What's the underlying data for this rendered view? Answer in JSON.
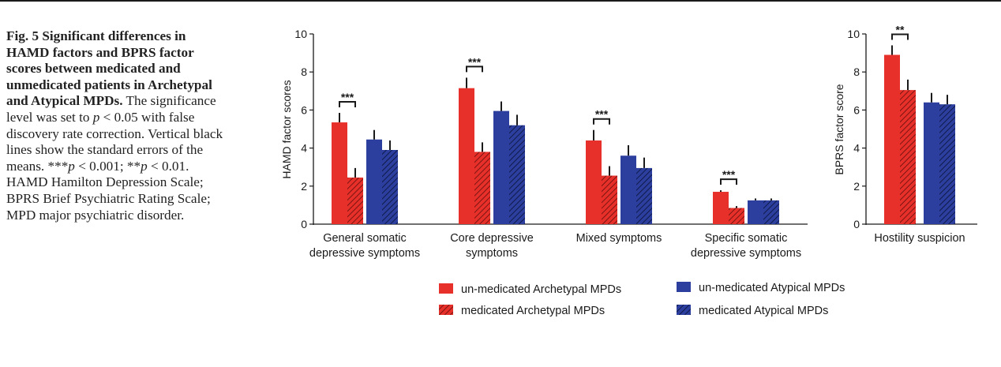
{
  "caption": {
    "title": "Fig. 5 Significant differences in HAMD factors and BPRS factor scores between medicated and unmedicated patients in Archetypal and Atypical MPDs.",
    "text_1": " The significance level was set to ",
    "p_symbol": "p",
    "text_2": " < 0.05 with false discovery rate correction. Vertical black lines show the standard errors of the means. ***",
    "text_3": " < 0.001; **",
    "text_4": " < 0.01. HAMD Hamilton Depression Scale; BPRS Brief Psychiatric Rating Scale; MPD major psychiatric disorder."
  },
  "colors": {
    "archetypal": "#e8302a",
    "atypical": "#2c3f9e",
    "axis": "#1a1a1a"
  },
  "legend": [
    {
      "label": "un-medicated Archetypal MPDs",
      "color": "#e8302a",
      "hatched": false
    },
    {
      "label": "medicated Archetypal MPDs",
      "color": "#e8302a",
      "hatched": true
    },
    {
      "label": "un-medicated  Atypical MPDs",
      "color": "#2c3f9e",
      "hatched": false
    },
    {
      "label": "medicated Atypical MPDs",
      "color": "#2c3f9e",
      "hatched": true
    }
  ],
  "chart_data": [
    {
      "type": "bar",
      "ylabel": "HAMD factor scores",
      "ylim": [
        0,
        10
      ],
      "yticks": [
        0,
        2,
        4,
        6,
        8,
        10
      ],
      "categories": [
        [
          "General somatic",
          "depressive symptoms"
        ],
        [
          "Core depressive",
          "symptoms"
        ],
        [
          "Mixed symptoms"
        ],
        [
          "Specific somatic",
          "depressive symptoms"
        ]
      ],
      "series": [
        {
          "name": "un-medicated Archetypal MPDs",
          "values": [
            5.35,
            7.15,
            4.4,
            1.7
          ],
          "errors": [
            0.5,
            0.55,
            0.55,
            0.08
          ]
        },
        {
          "name": "medicated Archetypal MPDs",
          "values": [
            2.45,
            3.8,
            2.55,
            0.85
          ],
          "errors": [
            0.5,
            0.5,
            0.5,
            0.1
          ]
        },
        {
          "name": "un-medicated  Atypical MPDs",
          "values": [
            4.45,
            5.95,
            3.6,
            1.25
          ],
          "errors": [
            0.5,
            0.5,
            0.55,
            0.1
          ]
        },
        {
          "name": "medicated Atypical MPDs",
          "values": [
            3.9,
            5.2,
            2.95,
            1.25
          ],
          "errors": [
            0.5,
            0.55,
            0.55,
            0.1
          ]
        }
      ],
      "significance": [
        {
          "category": 0,
          "label": "***"
        },
        {
          "category": 1,
          "label": "***"
        },
        {
          "category": 2,
          "label": "***"
        },
        {
          "category": 3,
          "label": "***"
        }
      ]
    },
    {
      "type": "bar",
      "ylabel": "BPRS factor score",
      "ylim": [
        0,
        10
      ],
      "yticks": [
        0,
        2,
        4,
        6,
        8,
        10
      ],
      "categories": [
        [
          "Hostility suspicion"
        ]
      ],
      "series": [
        {
          "name": "un-medicated Archetypal MPDs",
          "values": [
            8.9
          ],
          "errors": [
            0.5
          ]
        },
        {
          "name": "medicated Archetypal MPDs",
          "values": [
            7.05
          ],
          "errors": [
            0.55
          ]
        },
        {
          "name": "un-medicated  Atypical MPDs",
          "values": [
            6.4
          ],
          "errors": [
            0.5
          ]
        },
        {
          "name": "medicated Atypical MPDs",
          "values": [
            6.3
          ],
          "errors": [
            0.5
          ]
        }
      ],
      "significance": [
        {
          "category": 0,
          "label": "**"
        }
      ]
    }
  ]
}
